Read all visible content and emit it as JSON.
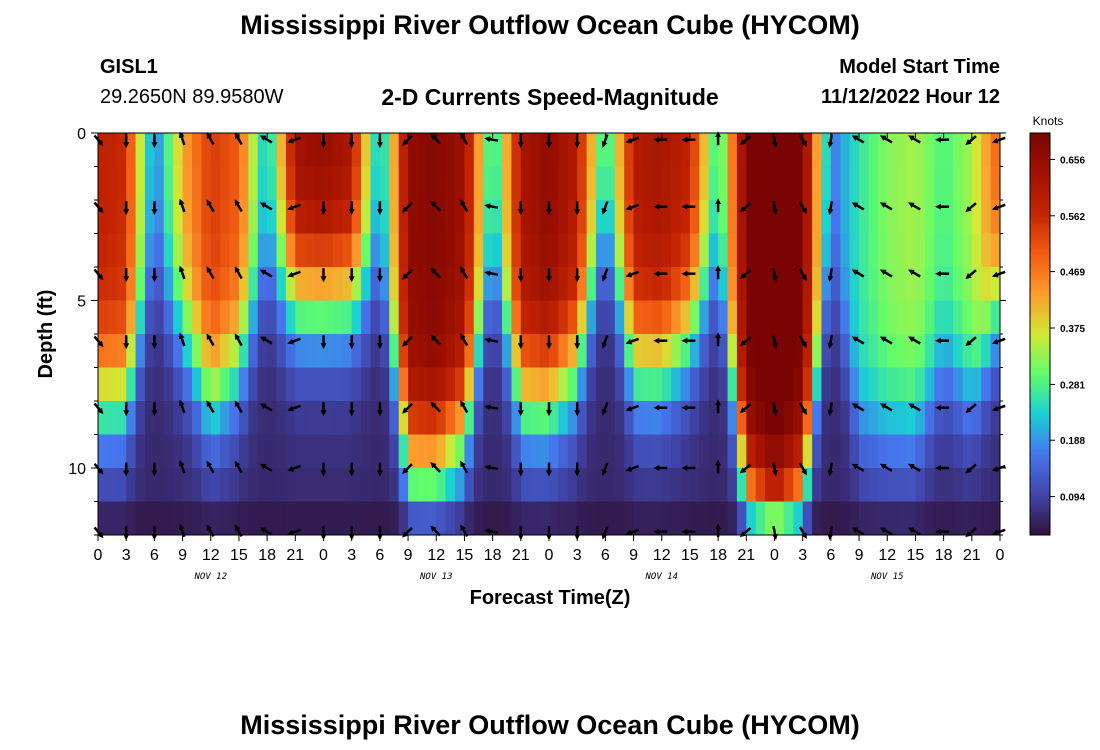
{
  "header": {
    "title": "Mississippi River Outflow Ocean Cube (HYCOM)",
    "station_id": "GISL1",
    "coordinates": "29.2650N  89.9580W",
    "subtitle": "2-D Currents Speed-Magnitude",
    "model_start_label": "Model Start Time",
    "model_start_value": "11/12/2022 Hour 12"
  },
  "footer": {
    "title": "Mississippi River Outflow Ocean Cube (HYCOM)"
  },
  "chart_data": {
    "type": "heatmap",
    "xlabel": "Forecast Time(Z)",
    "ylabel": "Depth (ft)",
    "x_tick_labels": [
      "0",
      "3",
      "6",
      "9",
      "12",
      "15",
      "18",
      "21",
      "0",
      "3",
      "6",
      "9",
      "12",
      "15",
      "18",
      "21",
      "0",
      "3",
      "6",
      "9",
      "12",
      "15",
      "18",
      "21",
      "0",
      "3",
      "6",
      "9",
      "12",
      "15",
      "18",
      "21",
      "0"
    ],
    "date_labels": [
      {
        "label": "NOV 12",
        "tick_index": 4
      },
      {
        "label": "NOV 13",
        "tick_index": 12
      },
      {
        "label": "NOV 14",
        "tick_index": 20
      },
      {
        "label": "NOV 15",
        "tick_index": 28
      }
    ],
    "x_range_hours": [
      0,
      96
    ],
    "y_tick_labels": [
      "0",
      "5",
      "10"
    ],
    "y_range_ft": [
      0,
      12
    ],
    "y_inverted": true,
    "colorbar": {
      "unit_label": "Knots",
      "tick_labels": [
        "0.656",
        "0.562",
        "0.469",
        "0.375",
        "0.281",
        "0.188",
        "0.094"
      ],
      "range": [
        0.03,
        0.7
      ]
    },
    "speed_profile": {
      "hours": [
        0,
        3,
        6,
        9,
        12,
        15,
        18,
        21,
        24,
        27,
        30,
        33,
        36,
        39,
        42,
        45,
        48,
        51,
        54,
        57,
        60,
        63,
        66,
        69,
        72,
        75,
        78,
        81,
        84,
        87,
        90,
        93,
        96
      ],
      "surface_knots": [
        0.52,
        0.5,
        0.1,
        0.36,
        0.48,
        0.44,
        0.14,
        0.58,
        0.6,
        0.56,
        0.12,
        0.6,
        0.62,
        0.58,
        0.16,
        0.56,
        0.6,
        0.54,
        0.18,
        0.54,
        0.56,
        0.52,
        0.18,
        0.64,
        0.68,
        0.64,
        0.1,
        0.2,
        0.26,
        0.28,
        0.22,
        0.28,
        0.45
      ],
      "decay_depth_ft": [
        8,
        8,
        4,
        6,
        8,
        7,
        4,
        5,
        5,
        5,
        4,
        10,
        10,
        9,
        4,
        8,
        8,
        7,
        3,
        7,
        7,
        6,
        4,
        11,
        12,
        11,
        4,
        9,
        9,
        9,
        7,
        8,
        5
      ]
    },
    "vectors": {
      "hours": [
        0,
        3,
        6,
        9,
        12,
        15,
        18,
        21,
        24,
        27,
        30,
        33,
        36,
        39,
        42,
        45,
        48,
        51,
        54,
        57,
        60,
        63,
        66,
        69,
        72,
        75,
        78,
        81,
        84,
        87,
        90,
        93,
        96
      ],
      "depths_ft": [
        0.2,
        2.2,
        4.2,
        6.2,
        8.2,
        10.0,
        11.9
      ],
      "direction_deg_from_north": [
        140,
        180,
        180,
        340,
        330,
        330,
        300,
        250,
        180,
        180,
        180,
        225,
        315,
        330,
        280,
        180,
        180,
        180,
        200,
        250,
        270,
        270,
        0,
        230,
        170,
        150,
        190,
        300,
        300,
        300,
        270,
        230,
        250
      ]
    }
  }
}
